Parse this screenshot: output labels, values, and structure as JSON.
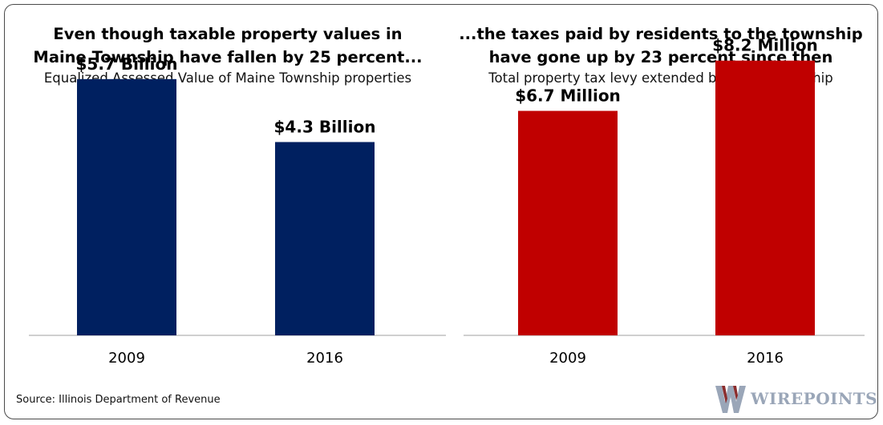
{
  "left_panel": {
    "title_line1": "Even though taxable property values in",
    "title_line2": "Maine Township have fallen by 25 percent...",
    "subtitle": "Equalized Assessed Value of Maine Township properties"
  },
  "right_panel": {
    "title_line1": "...the taxes paid by residents to the township",
    "title_line2": "have gone up by 23 percent since then",
    "subtitle": "Total property tax levy extended by Maine Township"
  },
  "source": "Source: Illinois Department of Revenue",
  "logo": {
    "text": "WIREPOINTS",
    "icon": "wirepoints-logo-icon"
  },
  "colors": {
    "left_bars": "#002060",
    "right_bars": "#C00000",
    "axis": "#bfbfbf"
  },
  "chart_data": [
    {
      "type": "bar",
      "categories": [
        "2009",
        "2016"
      ],
      "values": [
        5.7,
        4.3
      ],
      "unit": "billion USD",
      "data_labels": [
        "$5.7 Billion",
        "$4.3 Billion"
      ],
      "title": "",
      "xlabel": "",
      "ylabel": "",
      "ylim": [
        0,
        7.05
      ],
      "grid": false,
      "legend": "none"
    },
    {
      "type": "bar",
      "categories": [
        "2009",
        "2016"
      ],
      "values": [
        6.7,
        8.2
      ],
      "unit": "million USD",
      "data_labels": [
        "$6.7 Million",
        "$8.2 Million"
      ],
      "title": "",
      "xlabel": "",
      "ylabel": "",
      "ylim": [
        0,
        9.46
      ],
      "grid": false,
      "legend": "none"
    }
  ]
}
